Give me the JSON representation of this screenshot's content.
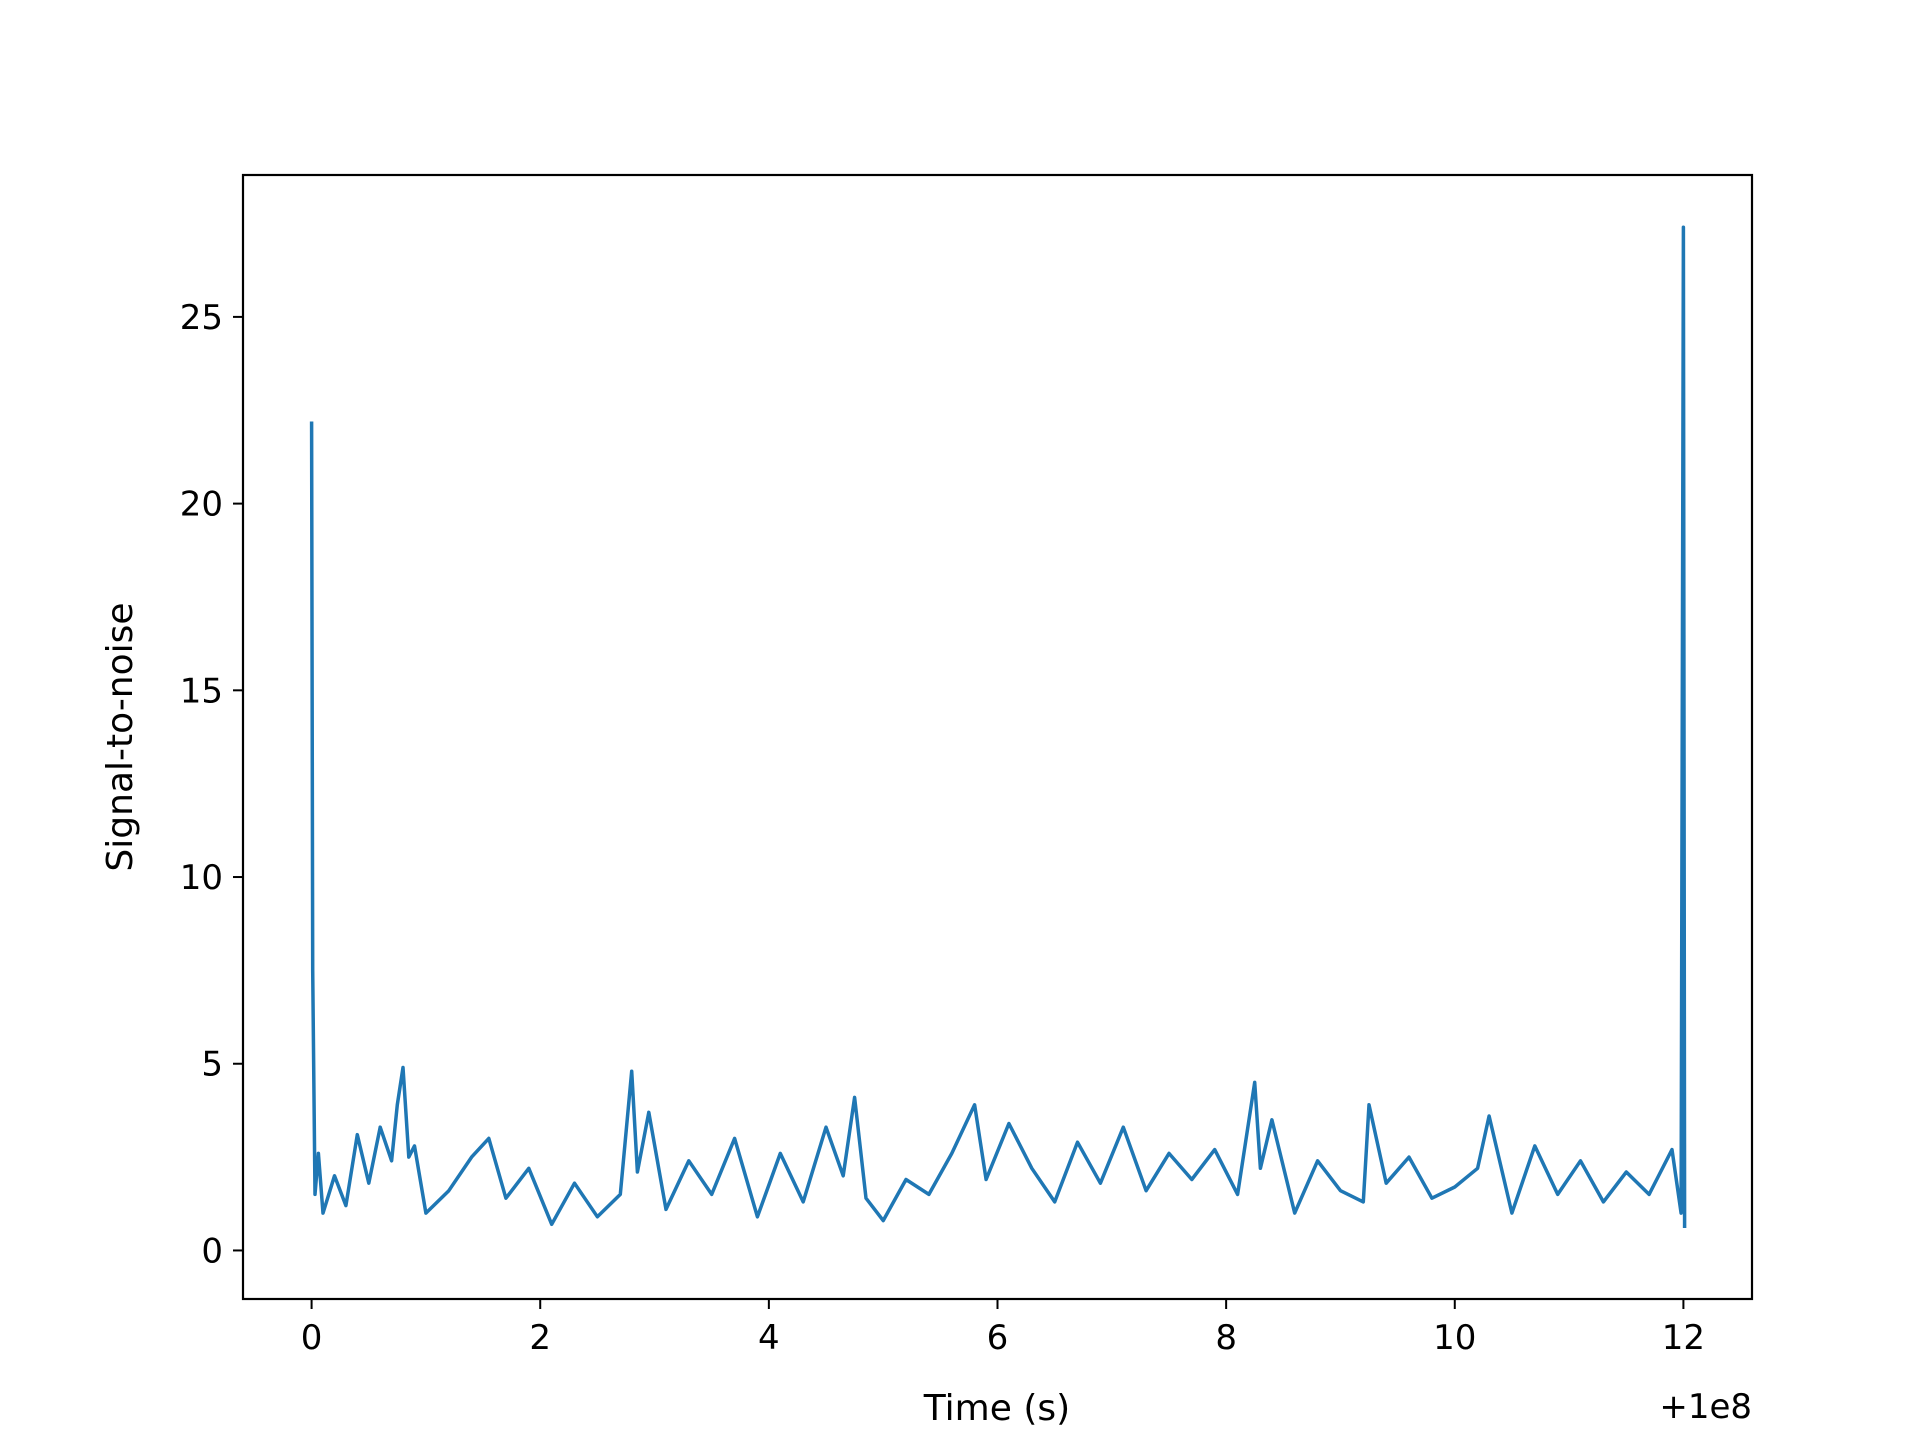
{
  "chart_data": {
    "type": "line",
    "title": "",
    "xlabel": "Time (s)",
    "ylabel": "Signal-to-noise",
    "offset_label": "+1e8",
    "xlim": [
      -0.6,
      12.6
    ],
    "ylim": [
      -1.3,
      28.8
    ],
    "xticks": [
      0,
      2,
      4,
      6,
      8,
      10,
      12
    ],
    "xtick_labels": [
      "0",
      "2",
      "4",
      "6",
      "8",
      "10",
      "12"
    ],
    "yticks": [
      0,
      5,
      10,
      15,
      20,
      25
    ],
    "ytick_labels": [
      "0",
      "5",
      "10",
      "15",
      "20",
      "25"
    ],
    "grid": false,
    "legend": "none",
    "line_color": "#1f77b4",
    "series": [
      {
        "x": [
          0.0,
          0.01,
          0.03,
          0.06,
          0.1,
          0.2,
          0.3,
          0.4,
          0.5,
          0.6,
          0.7,
          0.75,
          0.8,
          0.85,
          0.9,
          1.0,
          1.2,
          1.4,
          1.55,
          1.7,
          1.9,
          2.1,
          2.3,
          2.5,
          2.7,
          2.8,
          2.85,
          2.95,
          3.1,
          3.3,
          3.5,
          3.7,
          3.9,
          4.1,
          4.3,
          4.5,
          4.65,
          4.75,
          4.85,
          5.0,
          5.2,
          5.4,
          5.6,
          5.8,
          5.9,
          6.1,
          6.3,
          6.5,
          6.7,
          6.9,
          7.1,
          7.3,
          7.5,
          7.7,
          7.9,
          8.1,
          8.25,
          8.3,
          8.4,
          8.6,
          8.8,
          9.0,
          9.2,
          9.25,
          9.4,
          9.6,
          9.8,
          10.0,
          10.2,
          10.3,
          10.5,
          10.7,
          10.9,
          11.1,
          11.3,
          11.5,
          11.7,
          11.9,
          11.98,
          12.0,
          12.01
        ],
        "y": [
          22.2,
          7.5,
          1.5,
          2.6,
          1.0,
          2.0,
          1.2,
          3.1,
          1.8,
          3.3,
          2.4,
          3.9,
          4.9,
          2.5,
          2.8,
          1.0,
          1.6,
          2.5,
          3.0,
          1.4,
          2.2,
          0.7,
          1.8,
          0.9,
          1.5,
          4.8,
          2.1,
          3.7,
          1.1,
          2.4,
          1.5,
          3.0,
          0.9,
          2.6,
          1.3,
          3.3,
          2.0,
          4.1,
          1.4,
          0.8,
          1.9,
          1.5,
          2.6,
          3.9,
          1.9,
          3.4,
          2.2,
          1.3,
          2.9,
          1.8,
          3.3,
          1.6,
          2.6,
          1.9,
          2.7,
          1.5,
          4.5,
          2.2,
          3.5,
          1.0,
          2.4,
          1.6,
          1.3,
          3.9,
          1.8,
          2.5,
          1.4,
          1.7,
          2.2,
          3.6,
          1.0,
          2.8,
          1.5,
          2.4,
          1.3,
          2.1,
          1.5,
          2.7,
          1.0,
          27.4,
          0.6
        ]
      }
    ]
  }
}
